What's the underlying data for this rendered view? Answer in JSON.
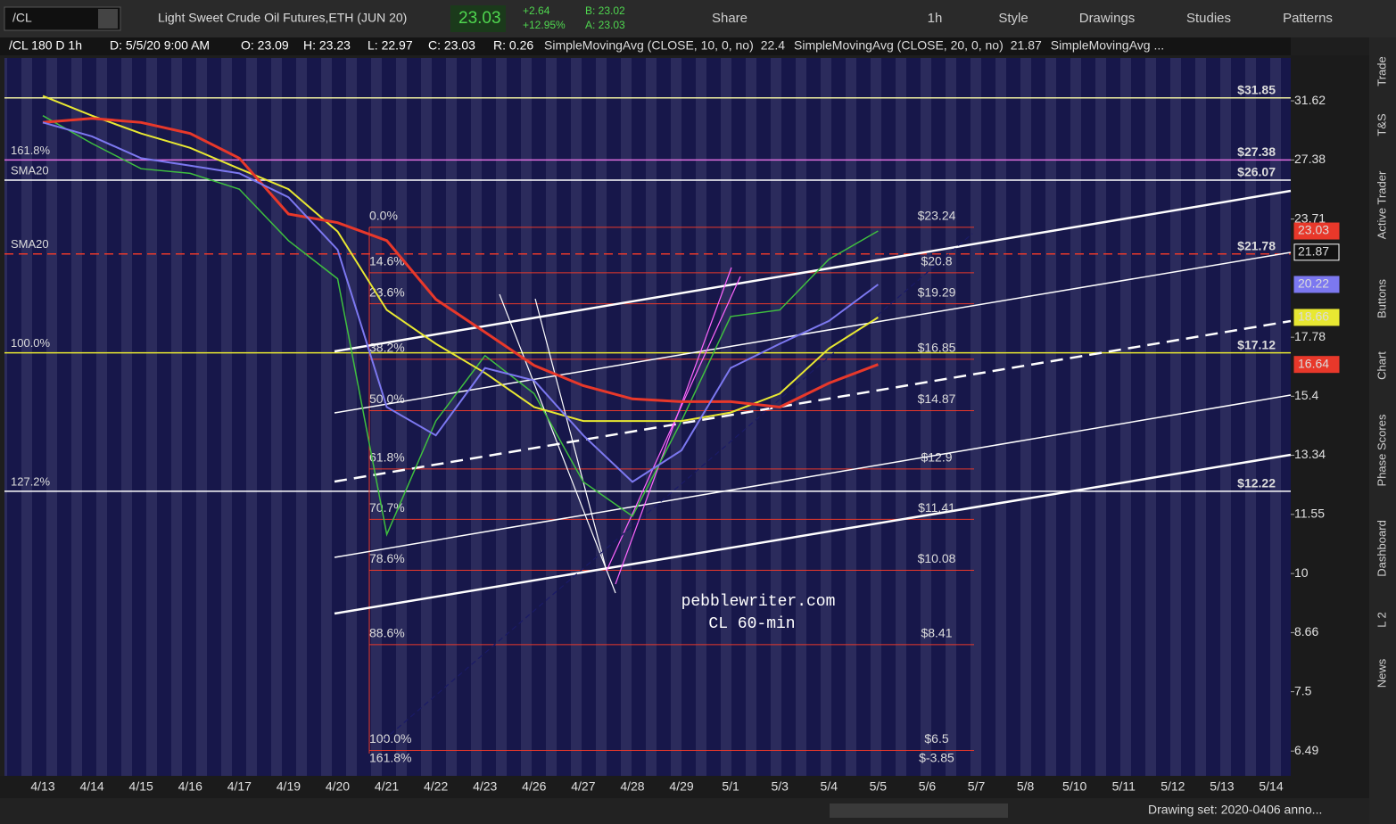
{
  "toolbar": {
    "symbol": "/CL",
    "description": "Light Sweet Crude Oil Futures,ETH (JUN 20)",
    "last": "23.03",
    "change": "+2.64",
    "change_pct": "+12.95%",
    "bid": "B: 23.02",
    "ask": "A: 23.03",
    "buttons": [
      "Share",
      "1h",
      "Style",
      "Drawings",
      "Studies",
      "Patterns"
    ]
  },
  "header": {
    "items": [
      "/CL 180 D 1h",
      "D: 5/5/20 9:00 AM",
      "O: 23.09",
      "H: 23.23",
      "L: 22.97",
      "C: 23.03",
      "R: 0.26"
    ],
    "studies": [
      {
        "text": "SimpleMovingAvg (CLOSE, 10, 0, no)",
        "value": "22.4",
        "color": "#e8382a"
      },
      {
        "text": "SimpleMovingAvg (CLOSE, 20, 0, no)",
        "value": "21.87",
        "color": "#ffffff"
      },
      {
        "text": "SimpleMovingAvg ...",
        "color": "#8a84ff"
      }
    ]
  },
  "sidebar": [
    "Trade",
    "T&S",
    "Active Trader",
    "Buttons",
    "Chart",
    "Phase Scores",
    "Dashboard",
    "L 2",
    "News"
  ],
  "chart_data": {
    "type": "line",
    "log_scale": true,
    "ylim": [
      6.11,
      35.1
    ],
    "yticks": [
      31.62,
      27.38,
      23.71,
      17.78,
      15.4,
      13.34,
      11.55,
      10,
      8.66,
      7.5,
      6.49
    ],
    "categories": [
      "4/13",
      "4/14",
      "4/15",
      "4/16",
      "4/17",
      "4/19",
      "4/20",
      "4/21",
      "4/22",
      "4/23",
      "4/26",
      "4/27",
      "4/28",
      "4/29",
      "5/1",
      "5/3",
      "5/4",
      "5/5",
      "5/6",
      "5/7",
      "5/8",
      "5/10",
      "5/11",
      "5/12",
      "5/13",
      "5/14"
    ],
    "series": [
      {
        "color": "#3fbf3f",
        "width": 1.5,
        "values": [
          30.5,
          28.5,
          26.8,
          26.5,
          25.5,
          22.5,
          20.5,
          11,
          14.5,
          17,
          15.5,
          12.5,
          11.5,
          14.5,
          18.7,
          19,
          21.5,
          23.03,
          null,
          null,
          null,
          null,
          null,
          null,
          null,
          null
        ]
      },
      {
        "color": "#e8e832",
        "width": 2,
        "values": [
          32,
          30.5,
          29.2,
          28.2,
          26.8,
          25.5,
          23,
          19,
          17.5,
          16.3,
          15,
          14.5,
          14.5,
          14.5,
          14.8,
          15.5,
          17.3,
          18.66,
          null,
          null,
          null,
          null,
          null,
          null,
          null,
          null
        ]
      },
      {
        "color": "#e8382a",
        "width": 3,
        "values": [
          30,
          30.3,
          30,
          29.2,
          27.5,
          24,
          23.5,
          22.5,
          19.5,
          18,
          16.6,
          15.8,
          15.3,
          15.2,
          15.2,
          15,
          15.9,
          16.64,
          null,
          null,
          null,
          null,
          null,
          null,
          null,
          null
        ]
      },
      {
        "color": "#7c78f0",
        "width": 2,
        "values": [
          30,
          29,
          27.5,
          27,
          26.5,
          25,
          22,
          15,
          14,
          16.5,
          16,
          14,
          12.5,
          13.5,
          16.5,
          17.5,
          18.5,
          20.22,
          null,
          null,
          null,
          null,
          null,
          null,
          null,
          null
        ]
      }
    ],
    "fib_levels": [
      {
        "pct": "0.0%",
        "label": "$23.24",
        "value": 23.24
      },
      {
        "pct": "14.6%",
        "label": "$20.8",
        "value": 20.8
      },
      {
        "pct": "23.6%",
        "label": "$19.29",
        "value": 19.29
      },
      {
        "pct": "38.2%",
        "label": "$16.85",
        "value": 16.85
      },
      {
        "pct": "50.0%",
        "label": "$14.87",
        "value": 14.87
      },
      {
        "pct": "61.8%",
        "label": "$12.9",
        "value": 12.9
      },
      {
        "pct": "70.7%",
        "label": "$11.41",
        "value": 11.41
      },
      {
        "pct": "78.6%",
        "label": "$10.08",
        "value": 10.08
      },
      {
        "pct": "88.6%",
        "label": "$8.41",
        "value": 8.41
      },
      {
        "pct": "100.0%",
        "label": "$6.5",
        "value": 6.5
      },
      {
        "pct": "161.8%",
        "label": "$-3.85",
        "value": -3.85
      }
    ],
    "levels": [
      {
        "value": 31.85,
        "label": "$31.85",
        "color": "#f0f0a0"
      },
      {
        "value": 27.38,
        "label": "$27.38",
        "color": "#e070e0",
        "left_label": "161.8%"
      },
      {
        "value": 26.07,
        "label": "$26.07",
        "color": "#ffffff",
        "left_label": "SMA20"
      },
      {
        "value": 21.78,
        "label": "$21.78",
        "color": "#e8382a",
        "dash": true,
        "left_label": "SMA20"
      },
      {
        "value": 17.12,
        "label": "$17.12",
        "color": "#e8e832",
        "left_label": "100.0%"
      },
      {
        "value": 12.22,
        "label": "$12.22",
        "color": "#ffffff",
        "left_label": "127.2%"
      }
    ],
    "badges": [
      {
        "value": 23.03,
        "color": "#e8382a"
      },
      {
        "value": 21.87,
        "color": "#ffffff"
      },
      {
        "value": 20.22,
        "color": "#7c78f0"
      },
      {
        "value": 18.66,
        "color": "#e8e832"
      },
      {
        "value": 16.64,
        "color": "#e8382a"
      }
    ],
    "annotations": [
      "pebblewriter.com",
      "CL 60-min"
    ]
  },
  "footer": {
    "drawing_set": "Drawing set: 2020-0406 anno..."
  }
}
